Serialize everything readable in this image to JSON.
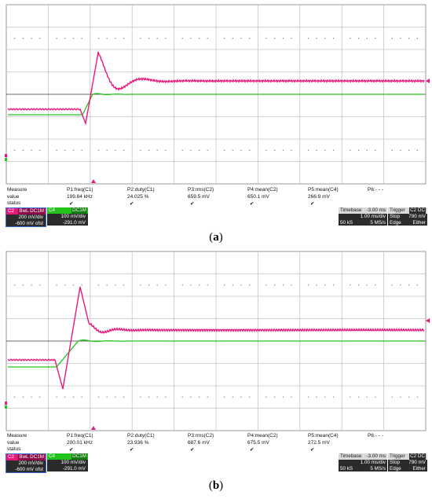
{
  "panels": [
    {
      "id": "a",
      "caption_open": "(",
      "caption_letter": "a",
      "caption_close": ")",
      "measure": {
        "measure_label": "Measure",
        "value_label": "value",
        "status_label": "status",
        "p1_name": "P1:freq(C1)",
        "p1_value": "199.84 kHz",
        "p2_name": "P2:duty(C1)",
        "p2_value": "24.025 %",
        "p3_name": "P3:rms(C2)",
        "p3_value": "659.5 mV",
        "p4_name": "P4:mean(C2)",
        "p4_value": "650.1 mV",
        "p5_name": "P5:mean(C4)",
        "p5_value": "266.9 mV",
        "p6_name": "P6:- - -",
        "check": "✔"
      },
      "ch2": {
        "tag": "C2",
        "mode": "BwL DC1M",
        "scale": "200 mV/div",
        "offset": "-600 mV ofst",
        "color": "#e8197d"
      },
      "ch4": {
        "tag": "C4",
        "mode": "DC1M",
        "scale": "100 mV/div",
        "offset": "-291.0 mV",
        "color": "#22c41c"
      },
      "timebase": {
        "label": "Timebase",
        "delay": "-3.00 ms",
        "per_div": "1.00 ms/div",
        "samples": "50 kS",
        "rate": "5 MS/s"
      },
      "trigger": {
        "label": "Trigger",
        "badge": "C2 DC",
        "state": "Stop",
        "level": "790 mV",
        "type": "Edge",
        "slope": "Either"
      }
    },
    {
      "id": "b",
      "caption_open": "(",
      "caption_letter": "b",
      "caption_close": ")",
      "measure": {
        "measure_label": "Measure",
        "value_label": "value",
        "status_label": "status",
        "p1_name": "P1:freq(C1)",
        "p1_value": "200.01 kHz",
        "p2_name": "P2:duty(C1)",
        "p2_value": "23.936 %",
        "p3_name": "P3:rms(C2)",
        "p3_value": "687.6 mV",
        "p4_name": "P4:mean(C2)",
        "p4_value": "675.5 mV",
        "p5_name": "P5:mean(C4)",
        "p5_value": "272.5 mV",
        "p6_name": "P6:- - -",
        "check": "✔"
      },
      "ch2": {
        "tag": "C2",
        "mode": "BwL DC1M",
        "scale": "200 mV/div",
        "offset": "-600 mV ofst",
        "color": "#e8197d"
      },
      "ch4": {
        "tag": "C4",
        "mode": "DC1M",
        "scale": "100 mV/div",
        "offset": "-291.0 mV",
        "color": "#22c41c"
      },
      "timebase": {
        "label": "Timebase",
        "delay": "-3.00 ms",
        "per_div": "1.00 ms/div",
        "samples": "50 kS",
        "rate": "5 MS/s"
      },
      "trigger": {
        "label": "Trigger",
        "badge": "C2 DC",
        "state": "Stop",
        "level": "790 mV",
        "type": "Edge",
        "slope": "Either"
      }
    }
  ],
  "colors": {
    "ch2_trace": "#e8197d",
    "ch4_trace": "#22c41c",
    "grid": "#bbbbbb",
    "screen_bg": "#ffffff"
  }
}
